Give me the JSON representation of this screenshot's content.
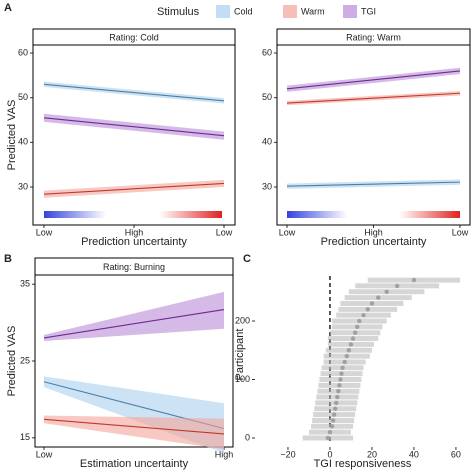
{
  "chart_data": [
    {
      "type": "line",
      "label": "A",
      "title": "Rating: Cold",
      "legend_title": "Stimulus",
      "ylabel": "Predicted VAS",
      "xlabel": "Prediction uncertainty",
      "x": [
        0,
        1
      ],
      "xlim": [
        0,
        1
      ],
      "xticks": [
        {
          "value": 0,
          "label": "Low"
        },
        {
          "value": 0.5,
          "label": "High"
        },
        {
          "value": 1,
          "label": "Low"
        }
      ],
      "ylim": [
        21.5,
        61.8
      ],
      "yticks": [
        30,
        40,
        50,
        60
      ],
      "series": [
        {
          "name": "Cold",
          "color": "#4a7ea6",
          "fill": "#aad0ef",
          "values": [
            53,
            49.3
          ],
          "lower": [
            52.4,
            48.7
          ],
          "upper": [
            53.6,
            49.9
          ]
        },
        {
          "name": "Warm",
          "color": "#c0392b",
          "fill": "#f4a39b",
          "values": [
            28.4,
            30.8
          ],
          "lower": [
            27.6,
            30
          ],
          "upper": [
            29.2,
            31.6
          ]
        },
        {
          "name": "TGI",
          "color": "#6a2c91",
          "fill": "#b98ad6",
          "values": [
            45.5,
            41.5
          ],
          "lower": [
            44.6,
            40.6
          ],
          "upper": [
            46.4,
            42.4
          ]
        }
      ]
    },
    {
      "type": "line",
      "title": "Rating: Warm",
      "xlabel": "Prediction uncertainty",
      "x": [
        0,
        1
      ],
      "xlim": [
        0,
        1
      ],
      "xticks": [
        {
          "value": 0,
          "label": "Low"
        },
        {
          "value": 0.5,
          "label": "High"
        },
        {
          "value": 1,
          "label": "Low"
        }
      ],
      "ylim": [
        21.5,
        61.8
      ],
      "yticks": [
        30,
        40,
        50,
        60
      ],
      "series": [
        {
          "name": "Cold",
          "color": "#4a7ea6",
          "fill": "#aad0ef",
          "values": [
            30.2,
            31.1
          ],
          "lower": [
            29.6,
            30.5
          ],
          "upper": [
            30.8,
            31.7
          ]
        },
        {
          "name": "Warm",
          "color": "#c0392b",
          "fill": "#f4a39b",
          "values": [
            48.8,
            51
          ],
          "lower": [
            48.3,
            50.5
          ],
          "upper": [
            49.3,
            51.5
          ]
        },
        {
          "name": "TGI",
          "color": "#6a2c91",
          "fill": "#b98ad6",
          "values": [
            52,
            56
          ],
          "lower": [
            51.3,
            55.3
          ],
          "upper": [
            52.7,
            56.7
          ]
        }
      ]
    },
    {
      "type": "line",
      "label": "B",
      "title": "Rating: Burning",
      "ylabel": "Predicted VAS",
      "xlabel": "Estimation uncertainty",
      "x": [
        0,
        1
      ],
      "xlim": [
        0,
        1
      ],
      "xticks": [
        {
          "value": 0,
          "label": "Low"
        },
        {
          "value": 1,
          "label": "High"
        }
      ],
      "ylim": [
        13.8,
        36.2
      ],
      "yticks": [
        15,
        25,
        35
      ],
      "series": [
        {
          "name": "Cold",
          "color": "#4a7ea6",
          "fill": "#aad0ef",
          "values": [
            22.3,
            16.2
          ],
          "lower": [
            21.6,
            13
          ],
          "upper": [
            23,
            19.5
          ]
        },
        {
          "name": "Warm",
          "color": "#c0392b",
          "fill": "#f4a39b",
          "values": [
            17.4,
            15.5
          ],
          "lower": [
            16.9,
            13.5
          ],
          "upper": [
            17.9,
            17.5
          ]
        },
        {
          "name": "TGI",
          "color": "#6a2c91",
          "fill": "#b98ad6",
          "values": [
            28,
            31.7
          ],
          "lower": [
            27.6,
            29.2
          ],
          "upper": [
            28.4,
            34
          ]
        }
      ]
    },
    {
      "type": "errorbar",
      "label": "C",
      "ylabel": "Participant",
      "xlabel": "TGI responsiveness",
      "color": "#b5b5b5",
      "refline": 0,
      "participants": [
        0,
        10,
        20,
        30,
        40,
        50,
        60,
        70,
        80,
        90,
        100,
        110,
        120,
        130,
        140,
        150,
        160,
        170,
        180,
        190,
        200,
        210,
        220,
        230,
        240,
        250,
        260,
        270
      ],
      "values": [
        -1,
        0,
        1,
        1.5,
        2,
        2.5,
        3,
        3.5,
        4,
        4.5,
        5,
        5.5,
        6,
        7,
        8,
        9,
        10,
        11,
        12,
        13,
        14,
        16,
        18,
        20,
        23,
        27,
        32,
        40
      ],
      "errors": [
        12,
        10,
        10,
        10,
        10,
        10,
        10,
        10,
        10,
        10,
        10,
        10,
        10,
        10,
        11,
        11,
        11,
        12,
        12,
        12,
        13,
        13,
        14,
        15,
        16,
        18,
        20,
        22
      ],
      "xlim": [
        -35.7,
        66.7
      ],
      "xticks": [
        {
          "value": -20,
          "label": "−20"
        },
        0,
        20,
        40,
        60
      ],
      "ylim": [
        -15.4,
        300.9
      ],
      "yticks": [
        0,
        100,
        200
      ]
    }
  ]
}
